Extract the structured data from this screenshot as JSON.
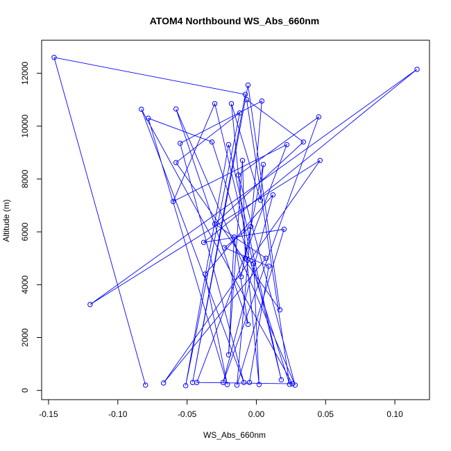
{
  "chart_data": {
    "type": "line",
    "title": "ATOM4 Northbound WS_Abs_660nm",
    "xlabel": "WS_Abs_660nm",
    "ylabel": "Altitude (m)",
    "xlim": [
      -0.155,
      0.125
    ],
    "ylim": [
      -350,
      13250
    ],
    "x_ticks": [
      -0.15,
      -0.1,
      -0.05,
      0.0,
      0.05,
      0.1
    ],
    "x_tick_labels": [
      "-0.15",
      "-0.10",
      "-0.05",
      "0.00",
      "0.05",
      "0.10"
    ],
    "y_ticks": [
      0,
      2000,
      4000,
      6000,
      8000,
      10000,
      12000
    ],
    "y_tick_labels": [
      "0",
      "2000",
      "4000",
      "6000",
      "8000",
      "10000",
      "12000"
    ],
    "grid": false,
    "legend": "none",
    "series": [
      {
        "marker": "open-circle",
        "x": [
          -0.08,
          -0.146,
          -0.008,
          -0.046,
          -0.006,
          0.017,
          -0.058,
          -0.012,
          -0.051,
          -0.02,
          0.018,
          -0.03,
          -0.06,
          0.022,
          -0.043,
          0.026,
          -0.083,
          -0.009,
          -0.055,
          0.004,
          -0.014,
          0.02,
          -0.038,
          0.116,
          -0.12,
          0.046,
          -0.067,
          0.007,
          -0.03,
          0.034,
          -0.007,
          0.024,
          -0.032,
          -0.078,
          -0.021,
          -0.037,
          0.012,
          -0.024,
          0.045,
          -0.013,
          0.028,
          -0.058,
          -0.006,
          -0.016,
          -0.02,
          -0.01,
          -0.008,
          -0.002,
          0.002,
          -0.018,
          0.003,
          0.005,
          -0.011,
          -0.004,
          -0.023,
          0.009,
          -0.005
        ],
        "y": [
          200,
          12600,
          11200,
          300,
          11550,
          3050,
          8620,
          10500,
          180,
          9300,
          400,
          10850,
          7150,
          9300,
          300,
          250,
          10640,
          300,
          9350,
          10950,
          200,
          6100,
          5600,
          12150,
          3250,
          8700,
          280,
          5000,
          6300,
          9400,
          11000,
          230,
          9400,
          10300,
          220,
          4400,
          7400,
          300,
          10350,
          8150,
          200,
          10650,
          2500,
          5800,
          1350,
          8700,
          5000,
          4800,
          220,
          10850,
          7200,
          8550,
          4300,
          6200,
          5400,
          4700,
          300
        ]
      }
    ]
  }
}
